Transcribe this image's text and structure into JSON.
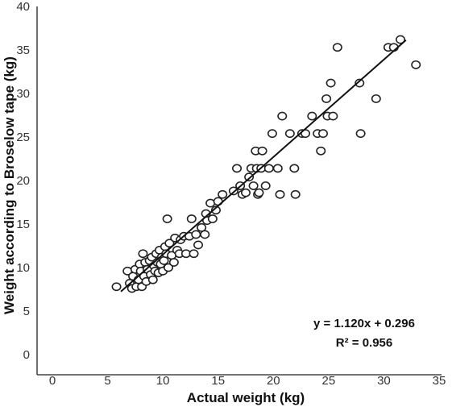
{
  "chart_data": {
    "type": "scatter",
    "xlabel": "Actual weight (kg)",
    "ylabel": "Weight according to Broselow tape (kg)",
    "xlim": [
      0,
      35
    ],
    "ylim": [
      0,
      40
    ],
    "x_ticks": [
      "0",
      "5",
      "10",
      "15",
      "20",
      "25",
      "30",
      "35"
    ],
    "y_ticks": [
      "0",
      "5",
      "10",
      "15",
      "20",
      "25",
      "30",
      "35",
      "40"
    ],
    "grid": false,
    "legend": "none",
    "trendline": {
      "type": "linear",
      "slope": 1.12,
      "intercept": 0.296,
      "x_range": [
        6.2,
        32.0
      ],
      "equation_label": "y = 1.120x + 0.296",
      "r2_label": "R² = 0.956"
    },
    "points": [
      {
        "x": 5.8,
        "y": 7.8
      },
      {
        "x": 6.8,
        "y": 9.6
      },
      {
        "x": 7.0,
        "y": 8.2
      },
      {
        "x": 7.2,
        "y": 7.6
      },
      {
        "x": 7.3,
        "y": 9.0
      },
      {
        "x": 7.5,
        "y": 9.8
      },
      {
        "x": 7.6,
        "y": 7.8
      },
      {
        "x": 7.8,
        "y": 8.6
      },
      {
        "x": 7.9,
        "y": 10.4
      },
      {
        "x": 8.0,
        "y": 9.6
      },
      {
        "x": 8.1,
        "y": 7.8
      },
      {
        "x": 8.2,
        "y": 11.6
      },
      {
        "x": 8.3,
        "y": 9.0
      },
      {
        "x": 8.4,
        "y": 10.6
      },
      {
        "x": 8.5,
        "y": 8.4
      },
      {
        "x": 8.6,
        "y": 9.8
      },
      {
        "x": 8.8,
        "y": 10.8
      },
      {
        "x": 8.9,
        "y": 9.2
      },
      {
        "x": 9.0,
        "y": 11.2
      },
      {
        "x": 9.1,
        "y": 8.6
      },
      {
        "x": 9.2,
        "y": 10.2
      },
      {
        "x": 9.3,
        "y": 9.6
      },
      {
        "x": 9.4,
        "y": 11.6
      },
      {
        "x": 9.5,
        "y": 10.6
      },
      {
        "x": 9.6,
        "y": 9.4
      },
      {
        "x": 9.7,
        "y": 12.0
      },
      {
        "x": 9.8,
        "y": 10.4
      },
      {
        "x": 9.9,
        "y": 11.2
      },
      {
        "x": 10.0,
        "y": 9.6
      },
      {
        "x": 10.1,
        "y": 10.8
      },
      {
        "x": 10.2,
        "y": 12.4
      },
      {
        "x": 10.3,
        "y": 11.6
      },
      {
        "x": 10.4,
        "y": 15.6
      },
      {
        "x": 10.5,
        "y": 10.0
      },
      {
        "x": 10.6,
        "y": 12.8
      },
      {
        "x": 10.8,
        "y": 11.4
      },
      {
        "x": 11.0,
        "y": 10.6
      },
      {
        "x": 11.1,
        "y": 13.4
      },
      {
        "x": 11.3,
        "y": 12.0
      },
      {
        "x": 11.5,
        "y": 11.6
      },
      {
        "x": 11.6,
        "y": 13.2
      },
      {
        "x": 11.9,
        "y": 13.6
      },
      {
        "x": 12.1,
        "y": 11.6
      },
      {
        "x": 12.4,
        "y": 13.6
      },
      {
        "x": 12.6,
        "y": 15.6
      },
      {
        "x": 12.8,
        "y": 11.6
      },
      {
        "x": 13.0,
        "y": 13.8
      },
      {
        "x": 13.2,
        "y": 12.6
      },
      {
        "x": 13.5,
        "y": 14.6
      },
      {
        "x": 13.8,
        "y": 13.8
      },
      {
        "x": 13.9,
        "y": 16.2
      },
      {
        "x": 14.0,
        "y": 15.4
      },
      {
        "x": 14.3,
        "y": 17.4
      },
      {
        "x": 14.5,
        "y": 15.6
      },
      {
        "x": 14.8,
        "y": 16.6
      },
      {
        "x": 15.0,
        "y": 17.6
      },
      {
        "x": 15.4,
        "y": 18.4
      },
      {
        "x": 16.4,
        "y": 18.8
      },
      {
        "x": 16.7,
        "y": 21.4
      },
      {
        "x": 17.0,
        "y": 19.4
      },
      {
        "x": 17.2,
        "y": 18.4
      },
      {
        "x": 17.5,
        "y": 18.6
      },
      {
        "x": 17.8,
        "y": 20.4
      },
      {
        "x": 18.0,
        "y": 21.4
      },
      {
        "x": 18.2,
        "y": 19.4
      },
      {
        "x": 18.4,
        "y": 23.4
      },
      {
        "x": 18.5,
        "y": 21.4
      },
      {
        "x": 18.6,
        "y": 18.4
      },
      {
        "x": 18.7,
        "y": 18.6
      },
      {
        "x": 18.9,
        "y": 21.4
      },
      {
        "x": 19.0,
        "y": 23.4
      },
      {
        "x": 19.3,
        "y": 19.4
      },
      {
        "x": 19.6,
        "y": 21.4
      },
      {
        "x": 19.9,
        "y": 25.4
      },
      {
        "x": 20.4,
        "y": 21.4
      },
      {
        "x": 20.6,
        "y": 18.4
      },
      {
        "x": 20.8,
        "y": 27.4
      },
      {
        "x": 21.5,
        "y": 25.4
      },
      {
        "x": 21.9,
        "y": 21.4
      },
      {
        "x": 22.0,
        "y": 18.4
      },
      {
        "x": 22.6,
        "y": 25.4
      },
      {
        "x": 22.9,
        "y": 25.4
      },
      {
        "x": 23.5,
        "y": 27.4
      },
      {
        "x": 24.0,
        "y": 25.4
      },
      {
        "x": 24.3,
        "y": 23.4
      },
      {
        "x": 24.5,
        "y": 25.4
      },
      {
        "x": 24.8,
        "y": 29.4
      },
      {
        "x": 24.9,
        "y": 27.4
      },
      {
        "x": 25.2,
        "y": 31.2
      },
      {
        "x": 25.4,
        "y": 27.4
      },
      {
        "x": 25.8,
        "y": 35.3
      },
      {
        "x": 27.8,
        "y": 31.2
      },
      {
        "x": 27.9,
        "y": 25.4
      },
      {
        "x": 29.3,
        "y": 29.4
      },
      {
        "x": 30.4,
        "y": 35.3
      },
      {
        "x": 30.9,
        "y": 35.3
      },
      {
        "x": 31.5,
        "y": 36.2
      },
      {
        "x": 32.9,
        "y": 33.3
      }
    ]
  }
}
